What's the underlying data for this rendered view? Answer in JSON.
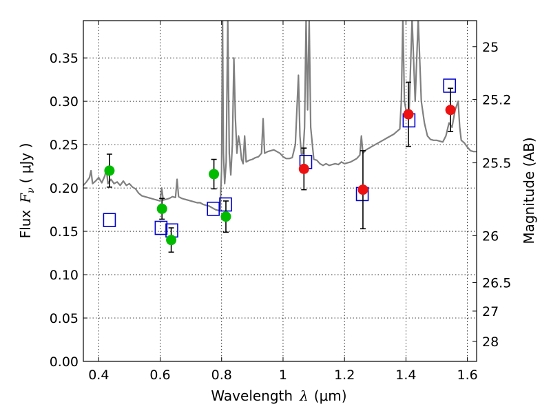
{
  "chart_data": {
    "type": "scatter",
    "xlabel_prefix": "Wavelength",
    "xlabel_symbol": "λ",
    "xlabel_unit": "(μm)",
    "ylabel_prefix": "Flux",
    "ylabel_symbol": "F",
    "ylabel_sub": "ν",
    "ylabel_unit": "( μJy )",
    "y2label": "Magnitude (AB)",
    "xlim": [
      0.35,
      1.63
    ],
    "ylim": [
      0.0,
      0.393
    ],
    "grid": true,
    "x_ticks": [
      0.4,
      0.6,
      0.8,
      1.0,
      1.2,
      1.4,
      1.6
    ],
    "x_tick_labels": [
      "0.4",
      "0.6",
      "0.8",
      "1",
      "1.2",
      "1.4",
      "1.6"
    ],
    "y_ticks": [
      0.0,
      0.05,
      0.1,
      0.15,
      0.2,
      0.25,
      0.3,
      0.35
    ],
    "y_tick_labels": [
      "0.00",
      "0.05",
      "0.10",
      "0.15",
      "0.20",
      "0.25",
      "0.30",
      "0.35"
    ],
    "y2_ticks": [
      {
        "label": "25",
        "flux": 0.363
      },
      {
        "label": "25.2",
        "flux": 0.302
      },
      {
        "label": "25.5",
        "flux": 0.229
      },
      {
        "label": "26",
        "flux": 0.145
      },
      {
        "label": "26.5",
        "flux": 0.091
      },
      {
        "label": "27",
        "flux": 0.058
      },
      {
        "label": "28",
        "flux": 0.023
      }
    ],
    "series": [
      {
        "marker": "circle",
        "color": "#00bb00",
        "points": [
          {
            "x": 0.435,
            "y": 0.22,
            "err": 0.019
          },
          {
            "x": 0.606,
            "y": 0.176,
            "err": 0.012
          },
          {
            "x": 0.636,
            "y": 0.14,
            "err": 0.014
          },
          {
            "x": 0.775,
            "y": 0.216,
            "err": 0.017
          },
          {
            "x": 0.814,
            "y": 0.167,
            "err": 0.018
          }
        ]
      },
      {
        "marker": "circle",
        "color": "#ee1111",
        "points": [
          {
            "x": 1.068,
            "y": 0.222,
            "err": 0.024
          },
          {
            "x": 1.26,
            "y": 0.198,
            "err": 0.045
          },
          {
            "x": 1.408,
            "y": 0.285,
            "err": 0.037
          },
          {
            "x": 1.545,
            "y": 0.29,
            "err": 0.025
          }
        ]
      },
      {
        "marker": "square",
        "color": "#0000cc",
        "points": [
          {
            "x": 0.435,
            "y": 0.163
          },
          {
            "x": 0.603,
            "y": 0.154
          },
          {
            "x": 0.638,
            "y": 0.151
          },
          {
            "x": 0.773,
            "y": 0.176
          },
          {
            "x": 0.813,
            "y": 0.181
          },
          {
            "x": 1.074,
            "y": 0.23
          },
          {
            "x": 1.258,
            "y": 0.193
          },
          {
            "x": 1.41,
            "y": 0.278
          },
          {
            "x": 1.542,
            "y": 0.318
          }
        ]
      },
      {
        "marker": "line",
        "color": "#808080",
        "points": [
          [
            0.35,
            0.203
          ],
          [
            0.36,
            0.207
          ],
          [
            0.37,
            0.212
          ],
          [
            0.375,
            0.22
          ],
          [
            0.38,
            0.205
          ],
          [
            0.39,
            0.208
          ],
          [
            0.4,
            0.212
          ],
          [
            0.41,
            0.206
          ],
          [
            0.42,
            0.214
          ],
          [
            0.425,
            0.222
          ],
          [
            0.43,
            0.205
          ],
          [
            0.44,
            0.21
          ],
          [
            0.45,
            0.205
          ],
          [
            0.46,
            0.207
          ],
          [
            0.47,
            0.203
          ],
          [
            0.48,
            0.208
          ],
          [
            0.49,
            0.203
          ],
          [
            0.5,
            0.205
          ],
          [
            0.51,
            0.201
          ],
          [
            0.52,
            0.199
          ],
          [
            0.53,
            0.194
          ],
          [
            0.54,
            0.191
          ],
          [
            0.55,
            0.19
          ],
          [
            0.56,
            0.189
          ],
          [
            0.57,
            0.188
          ],
          [
            0.58,
            0.187
          ],
          [
            0.59,
            0.186
          ],
          [
            0.6,
            0.185
          ],
          [
            0.605,
            0.2
          ],
          [
            0.61,
            0.186
          ],
          [
            0.62,
            0.187
          ],
          [
            0.63,
            0.188
          ],
          [
            0.64,
            0.19
          ],
          [
            0.65,
            0.189
          ],
          [
            0.655,
            0.21
          ],
          [
            0.66,
            0.19
          ],
          [
            0.67,
            0.188
          ],
          [
            0.68,
            0.187
          ],
          [
            0.69,
            0.186
          ],
          [
            0.7,
            0.185
          ],
          [
            0.71,
            0.184
          ],
          [
            0.72,
            0.183
          ],
          [
            0.73,
            0.183
          ],
          [
            0.74,
            0.181
          ],
          [
            0.75,
            0.18
          ],
          [
            0.76,
            0.179
          ],
          [
            0.77,
            0.177
          ],
          [
            0.78,
            0.175
          ],
          [
            0.79,
            0.174
          ],
          [
            0.795,
            0.175
          ],
          [
            0.8,
            0.22
          ],
          [
            0.803,
            0.395
          ],
          [
            0.806,
            0.24
          ],
          [
            0.81,
            0.205
          ],
          [
            0.815,
            0.23
          ],
          [
            0.82,
            0.395
          ],
          [
            0.825,
            0.24
          ],
          [
            0.83,
            0.215
          ],
          [
            0.835,
            0.25
          ],
          [
            0.84,
            0.35
          ],
          [
            0.845,
            0.28
          ],
          [
            0.85,
            0.24
          ],
          [
            0.855,
            0.26
          ],
          [
            0.86,
            0.25
          ],
          [
            0.865,
            0.233
          ],
          [
            0.87,
            0.228
          ],
          [
            0.875,
            0.26
          ],
          [
            0.88,
            0.23
          ],
          [
            0.89,
            0.232
          ],
          [
            0.9,
            0.233
          ],
          [
            0.91,
            0.235
          ],
          [
            0.92,
            0.236
          ],
          [
            0.93,
            0.24
          ],
          [
            0.935,
            0.28
          ],
          [
            0.94,
            0.24
          ],
          [
            0.95,
            0.242
          ],
          [
            0.96,
            0.243
          ],
          [
            0.97,
            0.244
          ],
          [
            0.98,
            0.242
          ],
          [
            0.99,
            0.24
          ],
          [
            1.0,
            0.236
          ],
          [
            1.01,
            0.234
          ],
          [
            1.02,
            0.234
          ],
          [
            1.03,
            0.235
          ],
          [
            1.04,
            0.25
          ],
          [
            1.05,
            0.33
          ],
          [
            1.055,
            0.26
          ],
          [
            1.06,
            0.238
          ],
          [
            1.065,
            0.24
          ],
          [
            1.07,
            0.27
          ],
          [
            1.075,
            0.395
          ],
          [
            1.08,
            0.29
          ],
          [
            1.085,
            0.395
          ],
          [
            1.09,
            0.27
          ],
          [
            1.1,
            0.233
          ],
          [
            1.11,
            0.232
          ],
          [
            1.12,
            0.228
          ],
          [
            1.13,
            0.226
          ],
          [
            1.14,
            0.228
          ],
          [
            1.15,
            0.226
          ],
          [
            1.16,
            0.227
          ],
          [
            1.17,
            0.228
          ],
          [
            1.18,
            0.227
          ],
          [
            1.19,
            0.23
          ],
          [
            1.2,
            0.228
          ],
          [
            1.21,
            0.229
          ],
          [
            1.22,
            0.23
          ],
          [
            1.23,
            0.232
          ],
          [
            1.24,
            0.234
          ],
          [
            1.25,
            0.238
          ],
          [
            1.255,
            0.26
          ],
          [
            1.26,
            0.24
          ],
          [
            1.27,
            0.244
          ],
          [
            1.28,
            0.246
          ],
          [
            1.29,
            0.248
          ],
          [
            1.3,
            0.25
          ],
          [
            1.31,
            0.252
          ],
          [
            1.32,
            0.254
          ],
          [
            1.33,
            0.256
          ],
          [
            1.34,
            0.258
          ],
          [
            1.35,
            0.26
          ],
          [
            1.36,
            0.262
          ],
          [
            1.37,
            0.265
          ],
          [
            1.38,
            0.268
          ],
          [
            1.385,
            0.3
          ],
          [
            1.39,
            0.395
          ],
          [
            1.395,
            0.3
          ],
          [
            1.4,
            0.29
          ],
          [
            1.41,
            0.285
          ],
          [
            1.42,
            0.395
          ],
          [
            1.43,
            0.3
          ],
          [
            1.44,
            0.395
          ],
          [
            1.45,
            0.3
          ],
          [
            1.46,
            0.275
          ],
          [
            1.47,
            0.26
          ],
          [
            1.48,
            0.256
          ],
          [
            1.49,
            0.255
          ],
          [
            1.5,
            0.255
          ],
          [
            1.51,
            0.254
          ],
          [
            1.52,
            0.253
          ],
          [
            1.53,
            0.26
          ],
          [
            1.54,
            0.275
          ],
          [
            1.55,
            0.27
          ],
          [
            1.56,
            0.29
          ],
          [
            1.57,
            0.3
          ],
          [
            1.575,
            0.27
          ],
          [
            1.58,
            0.255
          ],
          [
            1.59,
            0.252
          ],
          [
            1.6,
            0.247
          ],
          [
            1.61,
            0.243
          ],
          [
            1.62,
            0.242
          ],
          [
            1.63,
            0.242
          ]
        ]
      }
    ]
  }
}
